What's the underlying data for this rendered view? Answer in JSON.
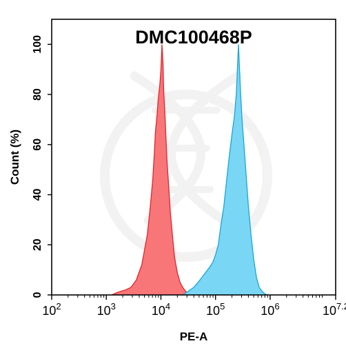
{
  "chart_data": {
    "type": "area",
    "title": "DMC100468P",
    "xlabel": "PE-A",
    "ylabel": "Count  (%)",
    "x_scale": "log10",
    "xlim": [
      100,
      15848932
    ],
    "ylim": [
      0,
      110
    ],
    "x_ticks": [
      {
        "value": 100,
        "base": "10",
        "exp": "2"
      },
      {
        "value": 1000,
        "base": "10",
        "exp": "3"
      },
      {
        "value": 10000,
        "base": "10",
        "exp": "4"
      },
      {
        "value": 100000,
        "base": "10",
        "exp": "5"
      },
      {
        "value": 1000000,
        "base": "10",
        "exp": "6"
      },
      {
        "value": 15848932,
        "base": "10",
        "exp": "7.2"
      }
    ],
    "y_ticks": [
      "0",
      "20",
      "40",
      "60",
      "80",
      "100"
    ],
    "grid": false,
    "legend": "none",
    "series": [
      {
        "color": "#f87578",
        "edge": "#e0262b",
        "x": [
          1259,
          1585,
          2239,
          2818,
          3548,
          4467,
          5012,
          5623,
          6310,
          7079,
          7586,
          7943,
          8511,
          8913,
          9550,
          10000,
          10471,
          10965,
          11220,
          11749,
          12303,
          12882,
          13804,
          14791,
          16218,
          17783,
          19953,
          22387,
          25119,
          28184,
          31623,
          35481
        ],
        "y": [
          0,
          1,
          2,
          3,
          6,
          12,
          18,
          24,
          34,
          46,
          57,
          65,
          72,
          78,
          84,
          90,
          100,
          92,
          82,
          74,
          64,
          54,
          44,
          34,
          24,
          15,
          9,
          5,
          3,
          1.5,
          0.5,
          0
        ]
      },
      {
        "color": "#79d6f5",
        "edge": "#1aa5d6",
        "x": [
          25119,
          31623,
          39811,
          47863,
          56234,
          66069,
          77625,
          89125,
          100000,
          112202,
          125893,
          141254,
          158489,
          177828,
          199526,
          223872,
          239883,
          251189,
          263027,
          281838,
          301995,
          331131,
          363078,
          398107,
          446684,
          501187,
          562341,
          630957,
          707946,
          794328,
          891251
        ],
        "y": [
          0,
          1.5,
          3,
          5,
          7,
          9,
          11,
          13,
          16,
          20,
          28,
          35,
          45,
          55,
          64,
          72,
          80,
          90,
          100,
          85,
          72,
          60,
          48,
          36,
          24,
          14,
          7,
          3,
          1.5,
          0.5,
          0
        ]
      }
    ]
  }
}
